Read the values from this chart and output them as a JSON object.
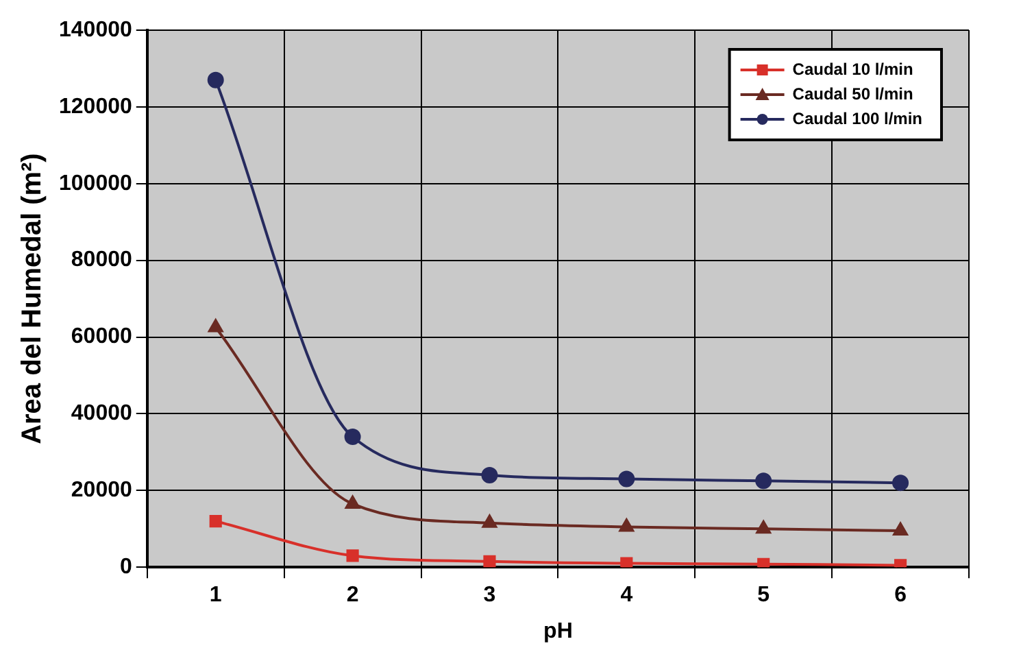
{
  "chart_data": {
    "type": "line",
    "xlabel": "pH",
    "ylabel": "Area del Humedal (m²)",
    "categories": [
      "1",
      "2",
      "3",
      "4",
      "5",
      "6"
    ],
    "series": [
      {
        "name": "Caudal 10 l/min",
        "color": "#d8302a",
        "marker": "square",
        "values": [
          12000,
          3000,
          1500,
          1000,
          800,
          500
        ]
      },
      {
        "name": "Caudal 50 l/min",
        "color": "#6a2a22",
        "marker": "triangle",
        "values": [
          62500,
          16500,
          11500,
          10500,
          10000,
          9500
        ]
      },
      {
        "name": "Caudal 100 l/min",
        "color": "#262a5e",
        "marker": "circle",
        "values": [
          127000,
          34000,
          24000,
          23000,
          22500,
          22000
        ]
      }
    ],
    "ylim": [
      0,
      140000
    ],
    "yticks": [
      0,
      20000,
      40000,
      60000,
      80000,
      100000,
      120000,
      140000
    ],
    "grid": true,
    "legend": "top right"
  }
}
